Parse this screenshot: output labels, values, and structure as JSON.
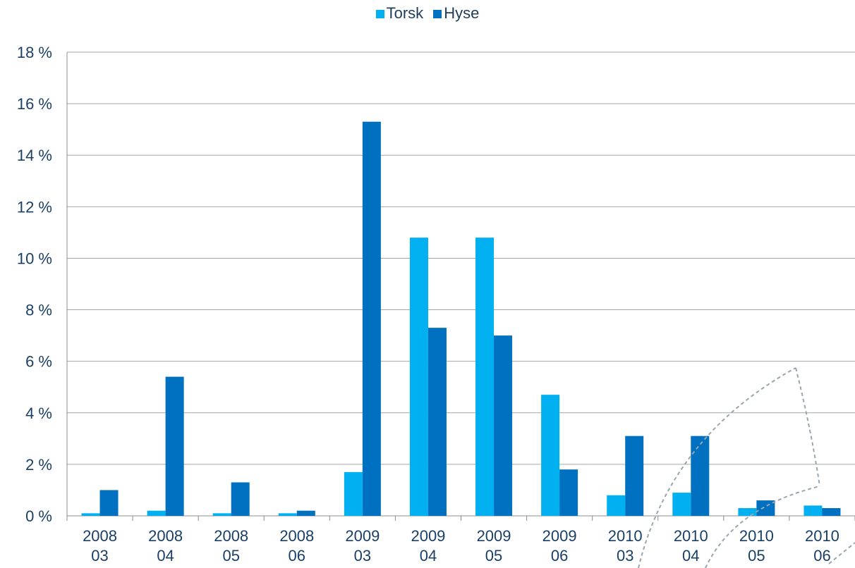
{
  "colors": {
    "torsk": "#00b0f0",
    "hyse": "#0070c0",
    "grid": "#a6a6a6",
    "text": "#1a3f66"
  },
  "chart_data": {
    "type": "bar",
    "title": "",
    "xlabel": "",
    "ylabel": "",
    "categories": [
      [
        "2008",
        "03"
      ],
      [
        "2008",
        "04"
      ],
      [
        "2008",
        "05"
      ],
      [
        "2008",
        "06"
      ],
      [
        "2009",
        "03"
      ],
      [
        "2009",
        "04"
      ],
      [
        "2009",
        "05"
      ],
      [
        "2009",
        "06"
      ],
      [
        "2010",
        "03"
      ],
      [
        "2010",
        "04"
      ],
      [
        "2010",
        "05"
      ],
      [
        "2010",
        "06"
      ]
    ],
    "series": [
      {
        "name": "Torsk",
        "values": [
          0.1,
          0.2,
          0.1,
          0.1,
          1.7,
          10.8,
          10.8,
          4.7,
          0.8,
          0.9,
          0.3,
          0.4
        ]
      },
      {
        "name": "Hyse",
        "values": [
          1.0,
          5.4,
          1.3,
          0.2,
          15.3,
          7.3,
          7.0,
          1.8,
          3.1,
          3.1,
          0.6,
          0.3
        ]
      }
    ],
    "ylim": [
      0,
      18
    ],
    "yticks": [
      0,
      2,
      4,
      6,
      8,
      10,
      12,
      14,
      16,
      18
    ],
    "ytick_labels": [
      "0 %",
      "2 %",
      "4 %",
      "6 %",
      "8 %",
      "10 %",
      "12 %",
      "14 %",
      "16 %",
      "18 %"
    ],
    "grid": true,
    "legend_position": "top-center"
  }
}
